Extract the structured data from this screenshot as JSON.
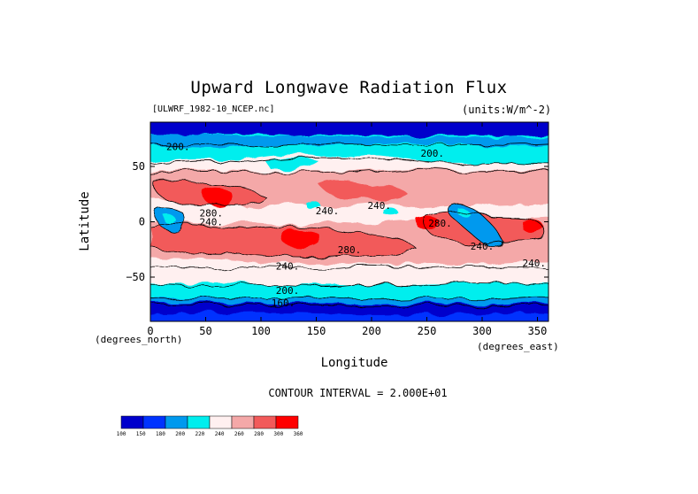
{
  "chart_data": {
    "type": "heatmap",
    "title": "Upward Longwave Radiation Flux",
    "subtitle": "[ULWRF_1982-10_NCEP.nc]",
    "units": "(units:W/m^-2)",
    "xlabel": "Longitude",
    "ylabel": "Latitude",
    "x_unit_label": "(degrees_east)",
    "y_unit_label": "(degrees_north)",
    "xlim": [
      0,
      360
    ],
    "ylim": [
      -90,
      90
    ],
    "x_ticks": [
      "0",
      "50",
      "100",
      "150",
      "200",
      "250",
      "300",
      "350"
    ],
    "y_ticks": [
      "50",
      "0",
      "−50"
    ],
    "contour_interval_text": "CONTOUR INTERVAL = 2.000E+01",
    "contour_labels": [
      {
        "text": "200.",
        "lon": 25,
        "lat": 68
      },
      {
        "text": "200.",
        "lon": 255,
        "lat": 62
      },
      {
        "text": "280.",
        "lon": 55,
        "lat": 8
      },
      {
        "text": "240.",
        "lon": 55,
        "lat": 0
      },
      {
        "text": "240.",
        "lon": 160,
        "lat": 10
      },
      {
        "text": "240.",
        "lon": 207,
        "lat": 15
      },
      {
        "text": "280.",
        "lon": 262,
        "lat": -1
      },
      {
        "text": "240.",
        "lon": 300,
        "lat": -22
      },
      {
        "text": "280.",
        "lon": 180,
        "lat": -25
      },
      {
        "text": "240.",
        "lon": 124,
        "lat": -40
      },
      {
        "text": "240.",
        "lon": 347,
        "lat": -37
      },
      {
        "text": "200.",
        "lon": 124,
        "lat": -62
      },
      {
        "text": "160.",
        "lon": 120,
        "lat": -73
      }
    ],
    "colorbar": {
      "ticks": [
        "100",
        "150",
        "180",
        "200",
        "220",
        "240",
        "260",
        "280",
        "300",
        "360"
      ],
      "colors": [
        "#0000cc",
        "#0033ff",
        "#0099ee",
        "#00eeee",
        "#fff0f0",
        "#f4a8a8",
        "#f25a5a",
        "#ff0000"
      ]
    }
  }
}
